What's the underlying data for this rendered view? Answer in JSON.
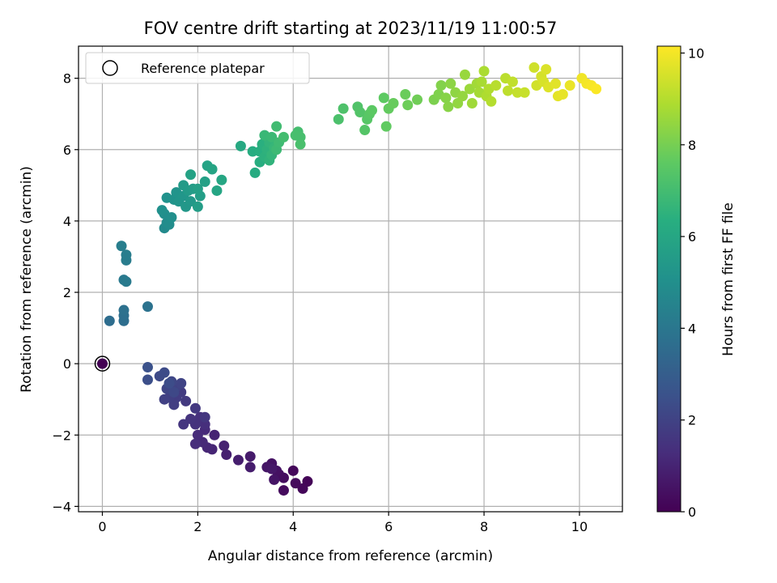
{
  "chart_data": {
    "type": "scatter",
    "title": "FOV centre drift starting at 2023/11/19 11:00:57",
    "xlabel": "Angular distance from reference (arcmin)",
    "ylabel": "Rotation from reference (arcmin)",
    "xlim": [
      -0.5,
      10.9
    ],
    "ylim": [
      -4.15,
      8.9
    ],
    "xticks": [
      0,
      2,
      4,
      6,
      8,
      10
    ],
    "yticks": [
      -4,
      -2,
      0,
      2,
      4,
      6,
      8
    ],
    "grid": true,
    "legend": {
      "position": "top-left",
      "entries": [
        "Reference platepar"
      ]
    },
    "reference_point": {
      "x": 0,
      "y": 0
    },
    "colorbar": {
      "label": "Hours from first FF file",
      "colormap": "viridis",
      "min": 0,
      "max": 10.15,
      "ticks": [
        0,
        2,
        4,
        6,
        8,
        10
      ]
    },
    "points": [
      {
        "x": 0.0,
        "y": 0.0,
        "c": 0.0
      },
      {
        "x": 4.3,
        "y": -3.3,
        "c": 0.1
      },
      {
        "x": 4.2,
        "y": -3.5,
        "c": 0.15
      },
      {
        "x": 4.0,
        "y": -3.0,
        "c": 0.2
      },
      {
        "x": 4.05,
        "y": -3.35,
        "c": 0.25
      },
      {
        "x": 3.8,
        "y": -3.55,
        "c": 0.3
      },
      {
        "x": 3.8,
        "y": -3.2,
        "c": 0.35
      },
      {
        "x": 3.7,
        "y": -3.1,
        "c": 0.4
      },
      {
        "x": 3.65,
        "y": -3.0,
        "c": 0.45
      },
      {
        "x": 3.55,
        "y": -2.8,
        "c": 0.5
      },
      {
        "x": 3.6,
        "y": -3.25,
        "c": 0.55
      },
      {
        "x": 3.45,
        "y": -2.9,
        "c": 0.6
      },
      {
        "x": 3.55,
        "y": -2.95,
        "c": 0.65
      },
      {
        "x": 3.1,
        "y": -2.6,
        "c": 0.75
      },
      {
        "x": 3.1,
        "y": -2.9,
        "c": 0.8
      },
      {
        "x": 2.85,
        "y": -2.7,
        "c": 0.85
      },
      {
        "x": 2.6,
        "y": -2.55,
        "c": 0.9
      },
      {
        "x": 2.55,
        "y": -2.3,
        "c": 0.95
      },
      {
        "x": 2.35,
        "y": -2.0,
        "c": 1.0
      },
      {
        "x": 2.3,
        "y": -2.4,
        "c": 1.05
      },
      {
        "x": 2.2,
        "y": -2.35,
        "c": 1.1
      },
      {
        "x": 2.1,
        "y": -2.2,
        "c": 1.15
      },
      {
        "x": 2.15,
        "y": -1.85,
        "c": 1.2
      },
      {
        "x": 2.0,
        "y": -2.0,
        "c": 1.25
      },
      {
        "x": 1.95,
        "y": -2.25,
        "c": 1.3
      },
      {
        "x": 2.15,
        "y": -1.7,
        "c": 1.35
      },
      {
        "x": 2.05,
        "y": -1.5,
        "c": 1.4
      },
      {
        "x": 1.95,
        "y": -1.7,
        "c": 1.45
      },
      {
        "x": 1.85,
        "y": -1.55,
        "c": 1.5
      },
      {
        "x": 1.7,
        "y": -1.7,
        "c": 1.55
      },
      {
        "x": 2.15,
        "y": -1.5,
        "c": 1.6
      },
      {
        "x": 1.95,
        "y": -1.25,
        "c": 1.65
      },
      {
        "x": 1.75,
        "y": -1.05,
        "c": 1.7
      },
      {
        "x": 1.65,
        "y": -0.8,
        "c": 1.75
      },
      {
        "x": 1.55,
        "y": -0.95,
        "c": 1.8
      },
      {
        "x": 1.5,
        "y": -1.15,
        "c": 1.85
      },
      {
        "x": 1.4,
        "y": -0.95,
        "c": 1.9
      },
      {
        "x": 1.3,
        "y": -1.0,
        "c": 1.95
      },
      {
        "x": 1.55,
        "y": -0.65,
        "c": 2.0
      },
      {
        "x": 1.65,
        "y": -0.55,
        "c": 2.05
      },
      {
        "x": 1.35,
        "y": -0.7,
        "c": 2.1
      },
      {
        "x": 1.45,
        "y": -0.5,
        "c": 2.15
      },
      {
        "x": 1.5,
        "y": -0.8,
        "c": 2.2
      },
      {
        "x": 1.2,
        "y": -0.35,
        "c": 2.25
      },
      {
        "x": 1.3,
        "y": -0.25,
        "c": 2.3
      },
      {
        "x": 1.4,
        "y": -0.55,
        "c": 2.35
      },
      {
        "x": 0.95,
        "y": -0.45,
        "c": 2.45
      },
      {
        "x": 0.95,
        "y": -0.1,
        "c": 2.55
      },
      {
        "x": 0.15,
        "y": 1.2,
        "c": 3.6
      },
      {
        "x": 0.45,
        "y": 1.2,
        "c": 3.65
      },
      {
        "x": 0.45,
        "y": 1.35,
        "c": 3.7
      },
      {
        "x": 0.45,
        "y": 1.5,
        "c": 3.75
      },
      {
        "x": 0.95,
        "y": 1.6,
        "c": 3.8
      },
      {
        "x": 0.45,
        "y": 2.35,
        "c": 4.1
      },
      {
        "x": 0.5,
        "y": 2.3,
        "c": 4.15
      },
      {
        "x": 0.5,
        "y": 2.9,
        "c": 4.2
      },
      {
        "x": 0.5,
        "y": 3.05,
        "c": 4.25
      },
      {
        "x": 0.4,
        "y": 3.3,
        "c": 4.3
      },
      {
        "x": 1.3,
        "y": 3.8,
        "c": 4.8
      },
      {
        "x": 1.35,
        "y": 3.95,
        "c": 4.85
      },
      {
        "x": 1.4,
        "y": 3.9,
        "c": 4.9
      },
      {
        "x": 1.3,
        "y": 4.2,
        "c": 4.95
      },
      {
        "x": 1.45,
        "y": 4.1,
        "c": 5.0
      },
      {
        "x": 1.25,
        "y": 4.3,
        "c": 5.05
      },
      {
        "x": 1.35,
        "y": 4.65,
        "c": 5.1
      },
      {
        "x": 1.5,
        "y": 4.6,
        "c": 5.15
      },
      {
        "x": 1.55,
        "y": 4.8,
        "c": 5.2
      },
      {
        "x": 1.6,
        "y": 4.55,
        "c": 5.25
      },
      {
        "x": 1.7,
        "y": 4.7,
        "c": 5.3
      },
      {
        "x": 1.75,
        "y": 4.4,
        "c": 5.35
      },
      {
        "x": 1.85,
        "y": 4.55,
        "c": 5.4
      },
      {
        "x": 1.7,
        "y": 5.0,
        "c": 5.45
      },
      {
        "x": 1.8,
        "y": 4.85,
        "c": 5.5
      },
      {
        "x": 1.9,
        "y": 4.9,
        "c": 5.55
      },
      {
        "x": 2.0,
        "y": 4.4,
        "c": 5.6
      },
      {
        "x": 2.05,
        "y": 4.7,
        "c": 5.65
      },
      {
        "x": 2.0,
        "y": 4.9,
        "c": 5.7
      },
      {
        "x": 2.15,
        "y": 5.1,
        "c": 5.75
      },
      {
        "x": 1.85,
        "y": 5.3,
        "c": 5.8
      },
      {
        "x": 2.2,
        "y": 5.55,
        "c": 5.85
      },
      {
        "x": 2.3,
        "y": 5.45,
        "c": 5.9
      },
      {
        "x": 2.4,
        "y": 4.85,
        "c": 5.95
      },
      {
        "x": 2.5,
        "y": 5.15,
        "c": 6.0
      },
      {
        "x": 2.9,
        "y": 6.1,
        "c": 6.1
      },
      {
        "x": 3.2,
        "y": 5.35,
        "c": 6.2
      },
      {
        "x": 3.15,
        "y": 5.95,
        "c": 6.25
      },
      {
        "x": 3.3,
        "y": 5.65,
        "c": 6.3
      },
      {
        "x": 3.3,
        "y": 5.95,
        "c": 6.35
      },
      {
        "x": 3.35,
        "y": 6.15,
        "c": 6.4
      },
      {
        "x": 3.4,
        "y": 5.8,
        "c": 6.45
      },
      {
        "x": 3.45,
        "y": 6.0,
        "c": 6.5
      },
      {
        "x": 3.5,
        "y": 5.7,
        "c": 6.55
      },
      {
        "x": 3.5,
        "y": 6.2,
        "c": 6.6
      },
      {
        "x": 3.55,
        "y": 5.85,
        "c": 6.65
      },
      {
        "x": 3.6,
        "y": 6.05,
        "c": 6.7
      },
      {
        "x": 3.4,
        "y": 6.4,
        "c": 6.75
      },
      {
        "x": 3.55,
        "y": 6.35,
        "c": 6.8
      },
      {
        "x": 3.65,
        "y": 6.0,
        "c": 6.85
      },
      {
        "x": 3.7,
        "y": 6.2,
        "c": 6.9
      },
      {
        "x": 3.65,
        "y": 6.65,
        "c": 6.95
      },
      {
        "x": 3.8,
        "y": 6.35,
        "c": 7.0
      },
      {
        "x": 4.1,
        "y": 6.5,
        "c": 7.05
      },
      {
        "x": 4.15,
        "y": 6.35,
        "c": 7.1
      },
      {
        "x": 4.15,
        "y": 6.15,
        "c": 7.15
      },
      {
        "x": 4.05,
        "y": 6.4,
        "c": 7.1
      },
      {
        "x": 4.95,
        "y": 6.85,
        "c": 7.2
      },
      {
        "x": 5.05,
        "y": 7.15,
        "c": 7.25
      },
      {
        "x": 5.35,
        "y": 7.2,
        "c": 7.3
      },
      {
        "x": 5.4,
        "y": 7.05,
        "c": 7.35
      },
      {
        "x": 5.5,
        "y": 6.55,
        "c": 7.4
      },
      {
        "x": 5.55,
        "y": 6.85,
        "c": 7.45
      },
      {
        "x": 5.6,
        "y": 7.0,
        "c": 7.5
      },
      {
        "x": 5.65,
        "y": 7.1,
        "c": 7.55
      },
      {
        "x": 5.9,
        "y": 7.45,
        "c": 7.6
      },
      {
        "x": 5.95,
        "y": 6.65,
        "c": 7.65
      },
      {
        "x": 6.0,
        "y": 7.15,
        "c": 7.7
      },
      {
        "x": 6.1,
        "y": 7.3,
        "c": 7.75
      },
      {
        "x": 6.35,
        "y": 7.55,
        "c": 7.8
      },
      {
        "x": 6.4,
        "y": 7.25,
        "c": 7.85
      },
      {
        "x": 6.6,
        "y": 7.4,
        "c": 7.9
      },
      {
        "x": 6.95,
        "y": 7.4,
        "c": 8.1
      },
      {
        "x": 7.05,
        "y": 7.55,
        "c": 8.15
      },
      {
        "x": 7.1,
        "y": 7.8,
        "c": 8.2
      },
      {
        "x": 7.2,
        "y": 7.45,
        "c": 8.25
      },
      {
        "x": 7.25,
        "y": 7.2,
        "c": 8.3
      },
      {
        "x": 7.3,
        "y": 7.85,
        "c": 8.35
      },
      {
        "x": 7.4,
        "y": 7.6,
        "c": 8.4
      },
      {
        "x": 7.45,
        "y": 7.3,
        "c": 8.45
      },
      {
        "x": 7.55,
        "y": 7.5,
        "c": 8.5
      },
      {
        "x": 7.6,
        "y": 8.1,
        "c": 8.55
      },
      {
        "x": 7.7,
        "y": 7.7,
        "c": 8.6
      },
      {
        "x": 7.75,
        "y": 7.3,
        "c": 8.65
      },
      {
        "x": 7.85,
        "y": 7.85,
        "c": 8.7
      },
      {
        "x": 7.9,
        "y": 7.6,
        "c": 8.75
      },
      {
        "x": 7.95,
        "y": 7.9,
        "c": 8.8
      },
      {
        "x": 8.0,
        "y": 8.2,
        "c": 8.85
      },
      {
        "x": 8.05,
        "y": 7.5,
        "c": 8.9
      },
      {
        "x": 8.1,
        "y": 7.7,
        "c": 8.95
      },
      {
        "x": 8.15,
        "y": 7.35,
        "c": 9.0
      },
      {
        "x": 8.25,
        "y": 7.8,
        "c": 9.05
      },
      {
        "x": 8.45,
        "y": 8.0,
        "c": 9.1
      },
      {
        "x": 8.5,
        "y": 7.65,
        "c": 9.15
      },
      {
        "x": 8.6,
        "y": 7.9,
        "c": 9.2
      },
      {
        "x": 8.7,
        "y": 7.6,
        "c": 9.25
      },
      {
        "x": 8.85,
        "y": 7.6,
        "c": 9.3
      },
      {
        "x": 9.05,
        "y": 8.3,
        "c": 9.4
      },
      {
        "x": 9.1,
        "y": 7.8,
        "c": 9.45
      },
      {
        "x": 9.2,
        "y": 8.05,
        "c": 9.5
      },
      {
        "x": 9.25,
        "y": 7.9,
        "c": 9.55
      },
      {
        "x": 9.3,
        "y": 8.25,
        "c": 9.6
      },
      {
        "x": 9.35,
        "y": 7.75,
        "c": 9.65
      },
      {
        "x": 9.5,
        "y": 7.85,
        "c": 9.7
      },
      {
        "x": 9.55,
        "y": 7.5,
        "c": 9.75
      },
      {
        "x": 9.65,
        "y": 7.55,
        "c": 9.8
      },
      {
        "x": 9.8,
        "y": 7.8,
        "c": 9.85
      },
      {
        "x": 10.05,
        "y": 8.0,
        "c": 9.95
      },
      {
        "x": 10.15,
        "y": 7.85,
        "c": 10.0
      },
      {
        "x": 10.25,
        "y": 7.8,
        "c": 10.05
      },
      {
        "x": 10.35,
        "y": 7.7,
        "c": 10.1
      }
    ]
  }
}
